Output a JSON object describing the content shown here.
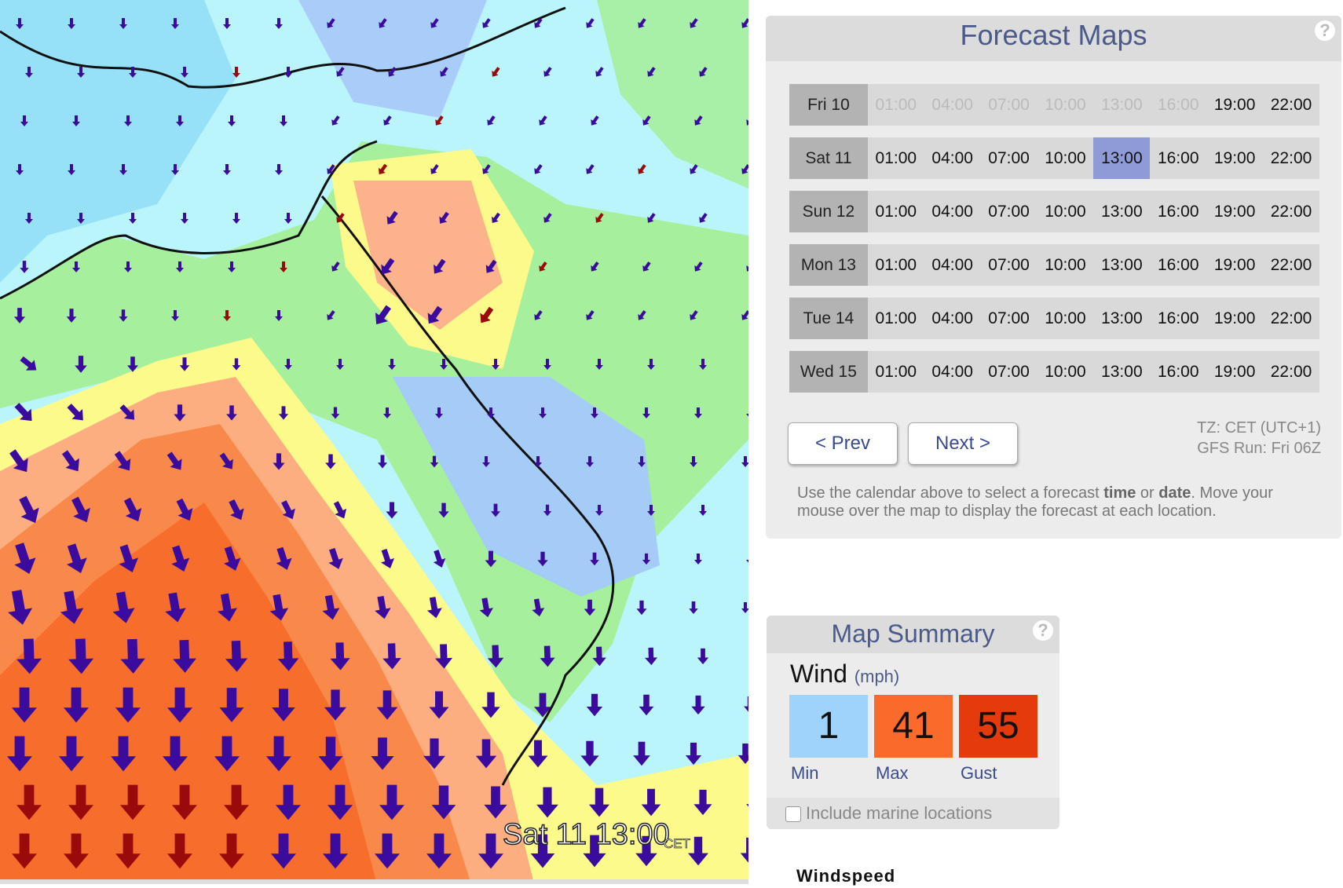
{
  "map": {
    "timestamp": "Sat 11 13:00",
    "timezone": "CET",
    "legend_title": "Windspeed"
  },
  "forecast_maps": {
    "title": "Forecast Maps",
    "help": "?",
    "days": [
      {
        "label": "Fri 10",
        "times": [
          "01:00",
          "04:00",
          "07:00",
          "10:00",
          "13:00",
          "16:00",
          "19:00",
          "22:00"
        ],
        "unavailable_count": 6
      },
      {
        "label": "Sat 11",
        "times": [
          "01:00",
          "04:00",
          "07:00",
          "10:00",
          "13:00",
          "16:00",
          "19:00",
          "22:00"
        ]
      },
      {
        "label": "Sun 12",
        "times": [
          "01:00",
          "04:00",
          "07:00",
          "10:00",
          "13:00",
          "16:00",
          "19:00",
          "22:00"
        ]
      },
      {
        "label": "Mon 13",
        "times": [
          "01:00",
          "04:00",
          "07:00",
          "10:00",
          "13:00",
          "16:00",
          "19:00",
          "22:00"
        ]
      },
      {
        "label": "Tue 14",
        "times": [
          "01:00",
          "04:00",
          "07:00",
          "10:00",
          "13:00",
          "16:00",
          "19:00",
          "22:00"
        ]
      },
      {
        "label": "Wed 15",
        "times": [
          "01:00",
          "04:00",
          "07:00",
          "10:00",
          "13:00",
          "16:00",
          "19:00",
          "22:00"
        ]
      }
    ],
    "selected_day": 1,
    "selected_time": 4,
    "prev": "< Prev",
    "next": "Next >",
    "timezone": "TZ: CET (UTC+1)",
    "run": "GFS Run: Fri 06Z",
    "help_text": [
      {
        "text": "Use the calendar above to select a forecast ",
        "bold": false
      },
      {
        "text": "time",
        "bold": true
      },
      {
        "text": " or ",
        "bold": false
      },
      {
        "text": "date",
        "bold": true
      },
      {
        "text": ". Move your mouse over the map to display the forecast at each location.",
        "bold": false
      }
    ]
  },
  "map_summary": {
    "title": "Map Summary",
    "help": "?",
    "variable": "Wind",
    "unit": "(mph)",
    "stats": [
      {
        "label": "Min",
        "value": 1,
        "color": "#9fd3fb"
      },
      {
        "label": "Max",
        "value": 41,
        "color": "#fa6a2b"
      },
      {
        "label": "Gust",
        "value": 55,
        "color": "#e43a0c"
      }
    ],
    "checkbox": "Include marine locations"
  }
}
